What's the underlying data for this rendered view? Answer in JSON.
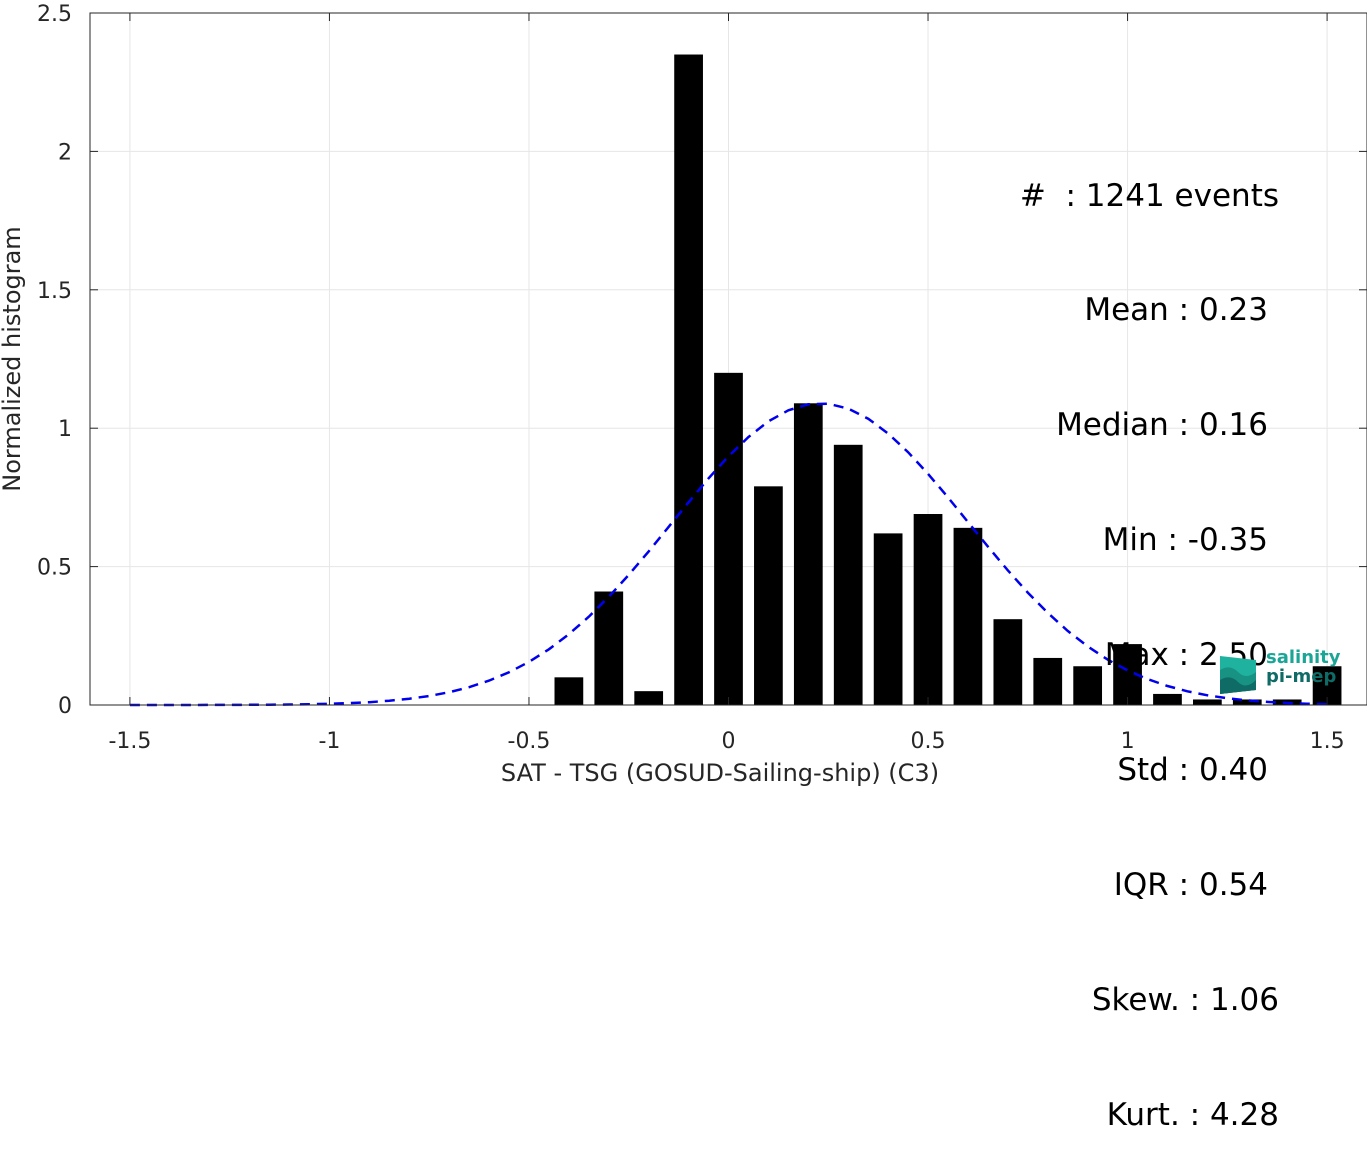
{
  "chart_data": {
    "type": "bar",
    "xlabel": "SAT - TSG (GOSUD-Sailing-ship) (C3)",
    "ylabel": "Normalized histogram",
    "xlim": [
      -1.6,
      1.6
    ],
    "ylim": [
      0,
      2.5
    ],
    "xticks": [
      -1.5,
      -1,
      -0.5,
      0,
      0.5,
      1,
      1.5
    ],
    "xtick_labels": [
      "-1.5",
      "-1",
      "-0.5",
      "0",
      "0.5",
      "1",
      "1.5"
    ],
    "yticks": [
      0,
      0.5,
      1,
      1.5,
      2,
      2.5
    ],
    "ytick_labels": [
      "0",
      "0.5",
      "1",
      "1.5",
      "2",
      "2.5"
    ],
    "grid": true,
    "bin_width": 0.1,
    "bar_color": "#000000",
    "bars": [
      {
        "x": -0.4,
        "value": 0.1
      },
      {
        "x": -0.3,
        "value": 0.41
      },
      {
        "x": -0.2,
        "value": 0.05
      },
      {
        "x": -0.1,
        "value": 2.35
      },
      {
        "x": 0.0,
        "value": 1.2
      },
      {
        "x": 0.1,
        "value": 0.79
      },
      {
        "x": 0.2,
        "value": 1.09
      },
      {
        "x": 0.3,
        "value": 0.94
      },
      {
        "x": 0.4,
        "value": 0.62
      },
      {
        "x": 0.5,
        "value": 0.69
      },
      {
        "x": 0.6,
        "value": 0.64
      },
      {
        "x": 0.7,
        "value": 0.31
      },
      {
        "x": 0.8,
        "value": 0.17
      },
      {
        "x": 0.9,
        "value": 0.14
      },
      {
        "x": 1.0,
        "value": 0.22
      },
      {
        "x": 1.1,
        "value": 0.04
      },
      {
        "x": 1.2,
        "value": 0.02
      },
      {
        "x": 1.3,
        "value": 0.02
      },
      {
        "x": 1.4,
        "value": 0.02
      },
      {
        "x": 1.5,
        "value": 0.14
      }
    ],
    "fit_curve": {
      "kind": "gaussian",
      "mean": 0.23,
      "std": 0.37,
      "peak": 1.09,
      "x_range": [
        -1.5,
        1.5
      ],
      "color": "#0000ee",
      "style": "dashed"
    },
    "stats_box": {
      "placement": "top-right",
      "lines": [
        "#  : 1241 events",
        "Mean : 0.23",
        "Median : 0.16",
        "Min : -0.35",
        "Max : 2.50",
        "Std : 0.40",
        "IQR : 0.54",
        "Skew. : 1.06",
        "Kurt. : 4.28"
      ]
    }
  },
  "logo": {
    "line1": "salinity",
    "line2": "pi-mep",
    "colors": [
      "#1aa596",
      "#0e6b66"
    ]
  }
}
